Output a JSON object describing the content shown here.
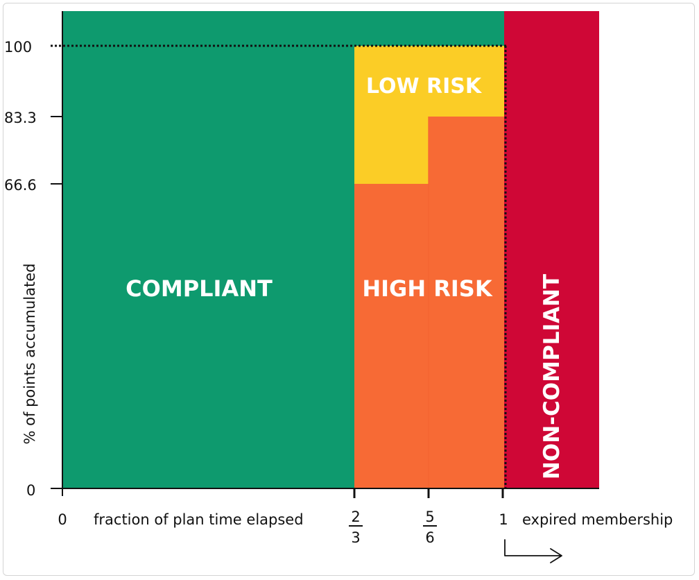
{
  "y_axis": {
    "title": "% of points accumulated",
    "ticks": [
      "0",
      "66.6",
      "83.3",
      "100"
    ]
  },
  "x_axis": {
    "title": "fraction of plan time elapsed",
    "zero": "0",
    "fractions": [
      {
        "num": "2",
        "den": "3"
      },
      {
        "num": "5",
        "den": "6"
      }
    ],
    "one": "1",
    "after_label": "expired membership"
  },
  "regions": {
    "compliant": {
      "label": "COMPLIANT",
      "color": "#0e9a6e"
    },
    "low_risk": {
      "label": "LOW RISK",
      "color": "#fbcd26"
    },
    "high_risk": {
      "label": "HIGH RISK",
      "color": "#f76a35"
    },
    "non_compliant": {
      "label": "NON-COMPLIANT",
      "color": "#cf0736"
    }
  }
}
